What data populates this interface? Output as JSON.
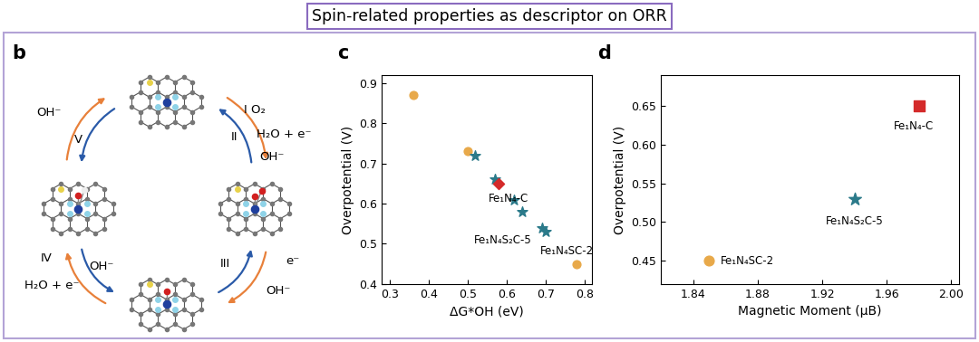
{
  "title": "Spin-related properties as descriptor on ORR",
  "diagram": {
    "panel": "b",
    "texts": [
      "OH⁻",
      "V",
      "I O₂",
      "II",
      "H₂O + e⁻",
      "OH⁻",
      "III",
      "e⁻",
      "OH⁻",
      "IV",
      "OH⁻",
      "H₂O + e⁻"
    ]
  },
  "chart_data": [
    {
      "panel": "c",
      "type": "scatter",
      "xlabel": "ΔG*OH (eV)",
      "ylabel": "Overpotential (V)",
      "xlim": [
        0.28,
        0.82
      ],
      "ylim": [
        0.4,
        0.92
      ],
      "xticks": [
        0.3,
        0.4,
        0.5,
        0.6,
        0.7,
        0.8
      ],
      "yticks": [
        0.4,
        0.5,
        0.6,
        0.7,
        0.8,
        0.9
      ],
      "series": [
        {
          "color": "#e8a94a",
          "marker": "circle",
          "x": [
            0.36,
            0.5,
            0.78
          ],
          "values": [
            0.87,
            0.73,
            0.45
          ]
        },
        {
          "color": "#2b7a8a",
          "marker": "star",
          "x": [
            0.52,
            0.57,
            0.62,
            0.64,
            0.69,
            0.7
          ],
          "values": [
            0.72,
            0.66,
            0.61,
            0.58,
            0.54,
            0.53
          ]
        },
        {
          "color": "#d42a2a",
          "marker": "diamond",
          "x": [
            0.58
          ],
          "values": [
            0.65
          ]
        }
      ],
      "annotations": [
        {
          "text": "Fe₁N₄-C",
          "x": 0.58,
          "y": 0.65
        },
        {
          "text": "Fe₁N₄S₂C-5",
          "x": 0.69,
          "y": 0.54
        },
        {
          "text": "Fe₁N₄SC-2",
          "x": 0.78,
          "y": 0.45
        }
      ]
    },
    {
      "panel": "d",
      "type": "scatter",
      "xlabel": "Magnetic Moment (μB)",
      "ylabel": "Overpotential (V)",
      "xlim": [
        1.82,
        2.005
      ],
      "ylim": [
        0.42,
        0.69
      ],
      "xticks": [
        1.84,
        1.88,
        1.92,
        1.96,
        {
          "value": 2.0,
          "label": "2.00"
        }
      ],
      "yticks": [
        0.45,
        {
          "value": 0.5,
          "label": "0.50"
        },
        0.55,
        {
          "value": 0.6,
          "label": "0.60"
        },
        0.65
      ],
      "series": [
        {
          "color": "#e8a94a",
          "marker": "circle",
          "x": [
            1.85
          ],
          "values": [
            0.45
          ]
        },
        {
          "color": "#2b7a8a",
          "marker": "star",
          "x": [
            1.94
          ],
          "values": [
            0.53
          ]
        },
        {
          "color": "#d42a2a",
          "marker": "square",
          "x": [
            1.98
          ],
          "values": [
            0.65
          ]
        }
      ],
      "annotations": [
        {
          "text": "Fe₁N₄-C",
          "x": 1.98,
          "y": 0.65
        },
        {
          "text": "Fe₁N₄S₂C-5",
          "x": 1.94,
          "y": 0.53
        },
        {
          "text": "Fe₁N₄SC-2",
          "x": 1.85,
          "y": 0.45
        }
      ]
    }
  ]
}
